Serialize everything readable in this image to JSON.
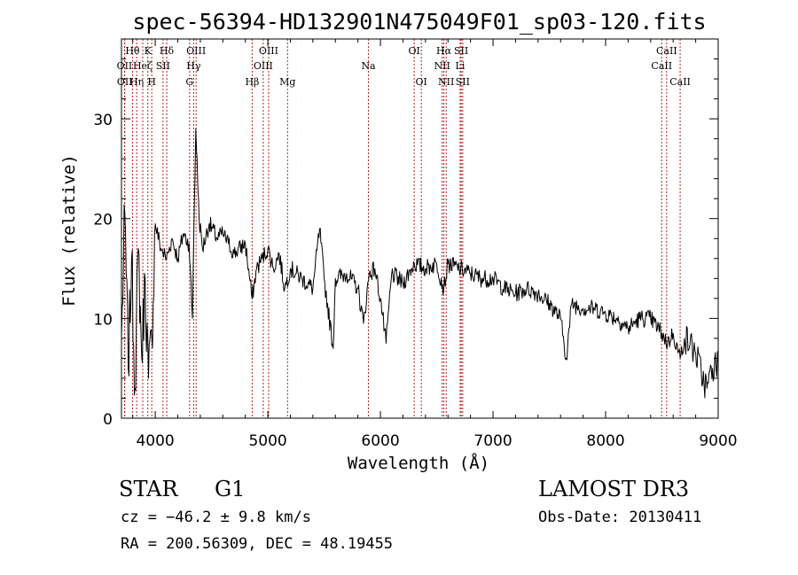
{
  "chart_data": {
    "type": "line",
    "title": "spec-56394-HD132901N475049F01_sp03-120.fits",
    "xlabel": "Wavelength (Å)",
    "ylabel": "Flux (relative)",
    "xlim": [
      3700,
      9000
    ],
    "ylim": [
      0,
      38
    ],
    "xticks": [
      4000,
      5000,
      6000,
      7000,
      8000,
      9000
    ],
    "yticks": [
      0,
      10,
      20,
      30
    ],
    "series": [
      {
        "name": "spectrum",
        "x": [
          3700,
          3730,
          3760,
          3790,
          3820,
          3850,
          3880,
          3910,
          3940,
          3970,
          4000,
          4050,
          4100,
          4150,
          4200,
          4250,
          4300,
          4330,
          4340,
          4360,
          4390,
          4420,
          4480,
          4550,
          4600,
          4650,
          4700,
          4800,
          4860,
          4900,
          4950,
          5000,
          5050,
          5100,
          5150,
          5200,
          5300,
          5400,
          5460,
          5500,
          5580,
          5600,
          5700,
          5800,
          5850,
          5900,
          5950,
          6000,
          6050,
          6100,
          6200,
          6300,
          6400,
          6500,
          6563,
          6600,
          6700,
          6800,
          6900,
          7000,
          7100,
          7200,
          7300,
          7400,
          7500,
          7600,
          7650,
          7700,
          7800,
          7900,
          8000,
          8100,
          8200,
          8300,
          8400,
          8500,
          8550,
          8600,
          8662,
          8700,
          8750,
          8800,
          8850,
          8900,
          8950,
          9000
        ],
        "y": [
          8,
          20.5,
          5,
          16,
          3,
          17,
          6,
          14,
          4,
          8,
          19.5,
          17,
          16,
          18,
          16,
          18.5,
          17.5,
          10,
          17,
          29,
          20,
          17,
          19.5,
          18,
          18.5,
          17.5,
          16.5,
          17.5,
          12,
          15,
          16,
          17,
          15,
          16.5,
          13,
          15,
          14,
          13,
          19,
          14,
          7,
          14,
          14.5,
          13,
          9.5,
          14.5,
          15,
          12,
          7.5,
          14.5,
          13.5,
          15.5,
          15,
          15.5,
          13,
          15.5,
          15,
          14.5,
          14,
          14,
          13,
          12.5,
          13,
          12.5,
          11.5,
          10,
          6,
          11.5,
          11,
          11,
          10.5,
          10,
          9,
          10,
          10,
          8.5,
          7.5,
          8.5,
          6,
          8,
          7.5,
          6.5,
          4.5,
          3,
          5,
          5.5
        ]
      }
    ],
    "lines": [
      {
        "name": "Hθ",
        "wl": 3798,
        "row": 1
      },
      {
        "name": "OII",
        "wl": 3727,
        "row": 2
      },
      {
        "name": "OII",
        "wl": 3729,
        "row": 3
      },
      {
        "name": "Hη",
        "wl": 3835,
        "row": 3
      },
      {
        "name": "Heζ",
        "wl": 3889,
        "row": 2
      },
      {
        "name": "K",
        "wl": 3934,
        "row": 1
      },
      {
        "name": "H",
        "wl": 3969,
        "row": 3
      },
      {
        "name": "Hδ",
        "wl": 4102,
        "row": 1
      },
      {
        "name": "SII",
        "wl": 4069,
        "row": 2
      },
      {
        "name": "OIII",
        "wl": 4363,
        "row": 1
      },
      {
        "name": "Hγ",
        "wl": 4341,
        "row": 2
      },
      {
        "name": "G",
        "wl": 4305,
        "row": 3
      },
      {
        "name": "Hβ",
        "wl": 4861,
        "row": 3
      },
      {
        "name": "OIII",
        "wl": 5007,
        "row": 1
      },
      {
        "name": "OIII",
        "wl": 4959,
        "row": 2
      },
      {
        "name": "Mg",
        "wl": 5175,
        "row": 3
      },
      {
        "name": "Na",
        "wl": 5893,
        "row": 2
      },
      {
        "name": "OI",
        "wl": 6300,
        "row": 1
      },
      {
        "name": "OI",
        "wl": 6363,
        "row": 3
      },
      {
        "name": "Hα",
        "wl": 6563,
        "row": 1
      },
      {
        "name": "NII",
        "wl": 6548,
        "row": 2
      },
      {
        "name": "NII",
        "wl": 6584,
        "row": 3
      },
      {
        "name": "SII",
        "wl": 6717,
        "row": 1
      },
      {
        "name": "SII",
        "wl": 6731,
        "row": 3
      },
      {
        "name": "Li",
        "wl": 6708,
        "row": 2
      },
      {
        "name": "CaII",
        "wl": 8542,
        "row": 1
      },
      {
        "name": "CaII",
        "wl": 8498,
        "row": 2
      },
      {
        "name": "CaII",
        "wl": 8662,
        "row": 3
      }
    ]
  },
  "info": {
    "class": "STAR",
    "subclass": "G1",
    "survey": "LAMOST DR3",
    "cz": "cz = −46.2 ± 9.8 km/s",
    "obs_date": "Obs-Date: 20130411",
    "coords": "RA = 200.56309, DEC =  48.19455"
  },
  "colors": {
    "line_marker": "#b22222",
    "spectrum": "#000000"
  }
}
